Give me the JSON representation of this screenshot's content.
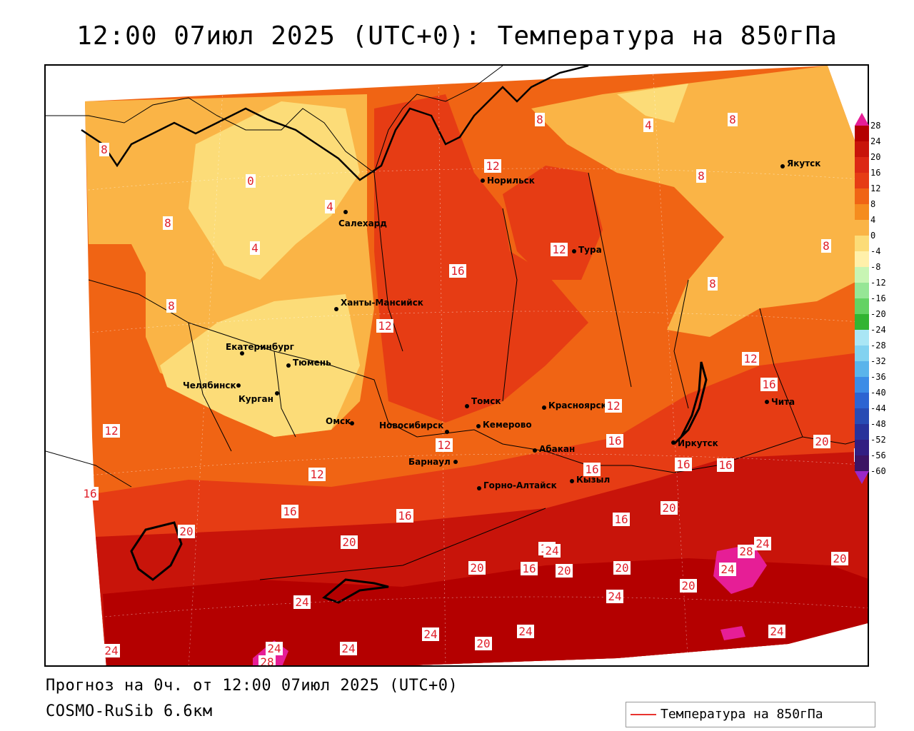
{
  "title": "12:00 07июл 2025 (UTC+0): Температура на 850гПа",
  "footer": {
    "line1": "Прогноз на 0ч. от 12:00 07июл 2025 (UTC+0)",
    "line2": "COSMO-RuSib 6.6км"
  },
  "legend": {
    "label": "Температура на 850гПа",
    "line_color": "#e8342f"
  },
  "colorbar": {
    "ticks": [
      "28",
      "24",
      "20",
      "16",
      "12",
      "8",
      "4",
      "0",
      "-4",
      "-8",
      "-12",
      "-16",
      "-20",
      "-24",
      "-28",
      "-32",
      "-36",
      "-40",
      "-44",
      "-48",
      "-52",
      "-56",
      "-60"
    ],
    "colors": [
      "#b40000",
      "#c8140a",
      "#dc2814",
      "#e63c14",
      "#f06414",
      "#f58c1e",
      "#fab446",
      "#fcdc78",
      "#fff0aa",
      "#c8f5b4",
      "#96e696",
      "#64d264",
      "#32b432",
      "#aae6f5",
      "#82d2f0",
      "#5ab4eb",
      "#3c8ce6",
      "#2d64d2",
      "#284bb4",
      "#28329b",
      "#321e82",
      "#3c1464"
    ],
    "top_color": "#e61e96",
    "bottom_color": "#9b28c8"
  },
  "cities": [
    {
      "name": "Норильск"
    },
    {
      "name": "Салехард"
    },
    {
      "name": "Тура"
    },
    {
      "name": "Якутск"
    },
    {
      "name": "Ханты-Мансийск"
    },
    {
      "name": "Екатеринбург"
    },
    {
      "name": "Тюмень"
    },
    {
      "name": "Челябинск"
    },
    {
      "name": "Курган"
    },
    {
      "name": "Омск"
    },
    {
      "name": "Новосибирск"
    },
    {
      "name": "Томск"
    },
    {
      "name": "Кемерово"
    },
    {
      "name": "Красноярск"
    },
    {
      "name": "Барнаул"
    },
    {
      "name": "Абакан"
    },
    {
      "name": "Горно-Алтайск"
    },
    {
      "name": "Кызыл"
    },
    {
      "name": "Иркутск"
    },
    {
      "name": "Чита"
    }
  ],
  "isotherm_labels": [
    "0",
    "4",
    "4",
    "8",
    "8",
    "8",
    "4",
    "8",
    "8",
    "8",
    "8",
    "8",
    "12",
    "12",
    "12",
    "12",
    "12",
    "12",
    "12",
    "12",
    "16",
    "16",
    "16",
    "16",
    "16",
    "16",
    "16",
    "16",
    "16",
    "16",
    "16",
    "16",
    "20",
    "20",
    "20",
    "20",
    "20",
    "20",
    "20",
    "20",
    "20",
    "20",
    "20",
    "24",
    "24",
    "24",
    "24",
    "24",
    "24",
    "24",
    "24",
    "24",
    "24",
    "24",
    "28",
    "28"
  ]
}
